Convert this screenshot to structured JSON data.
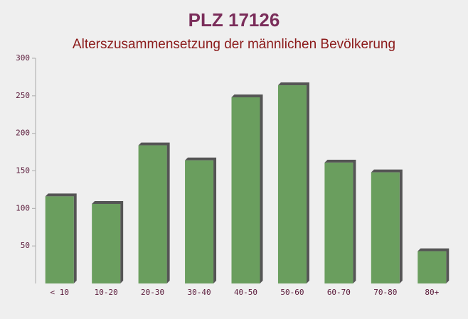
{
  "chart_data": {
    "type": "bar",
    "title": "PLZ 17126",
    "subtitle": "Alterszusammensetzung der männlichen Bevölkerung",
    "categories": [
      "< 10",
      "10-20",
      "20-30",
      "30-40",
      "40-50",
      "50-60",
      "60-70",
      "70-80",
      "80+"
    ],
    "values": [
      116,
      106,
      184,
      164,
      248,
      264,
      161,
      148,
      43
    ],
    "color": "#6a9e5e",
    "ylim": [
      0,
      300
    ],
    "yticks": [
      50,
      100,
      150,
      200,
      250,
      300
    ]
  }
}
